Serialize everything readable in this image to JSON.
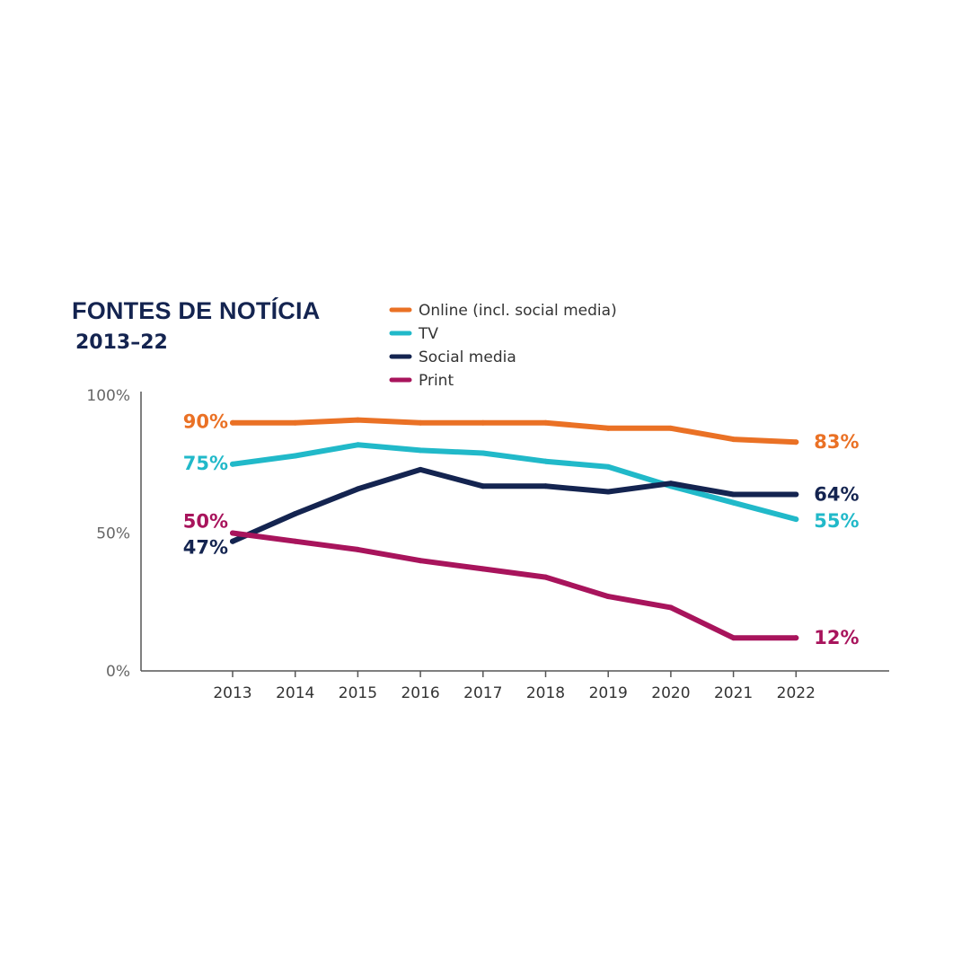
{
  "header": {
    "title": "FONTES DE NOTÍCIA",
    "subtitle": "2013–22"
  },
  "chart_data": {
    "type": "line",
    "title": "FONTES DE NOTÍCIA",
    "subtitle": "2013–22",
    "xlabel": "",
    "ylabel": "",
    "categories": [
      "2013",
      "2014",
      "2015",
      "2016",
      "2017",
      "2018",
      "2019",
      "2020",
      "2021",
      "2022"
    ],
    "ylim": [
      0,
      100
    ],
    "yticks": [
      0,
      50,
      100
    ],
    "ytick_labels": [
      "0%",
      "50%",
      "100%"
    ],
    "grid": false,
    "legend_position": "top",
    "series": [
      {
        "name": "Online (incl. social media)",
        "color": "#ea7125",
        "values": [
          90,
          90,
          91,
          90,
          90,
          90,
          88,
          88,
          84,
          83
        ],
        "start_label": "90%",
        "end_label": "83%"
      },
      {
        "name": "TV",
        "color": "#21b9c9",
        "values": [
          75,
          78,
          82,
          80,
          79,
          76,
          74,
          67,
          61,
          55
        ],
        "start_label": "75%",
        "end_label": "55%"
      },
      {
        "name": "Social media",
        "color": "#142450",
        "values": [
          47,
          57,
          66,
          73,
          67,
          67,
          65,
          68,
          64,
          64
        ],
        "start_label": "47%",
        "end_label": "64%"
      },
      {
        "name": "Print",
        "color": "#a8145c",
        "values": [
          50,
          47,
          44,
          40,
          37,
          34,
          27,
          23,
          12,
          12
        ],
        "start_label": "50%",
        "end_label": "12%"
      }
    ]
  }
}
